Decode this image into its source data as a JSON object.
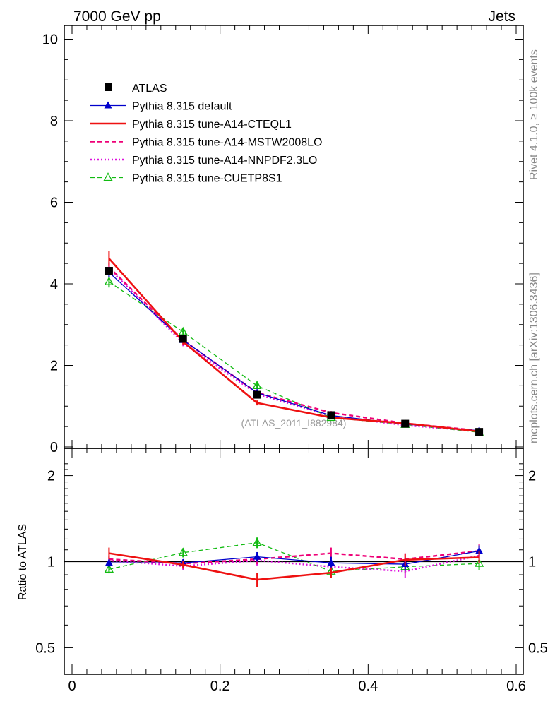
{
  "header": {
    "left": "7000 GeV pp",
    "right": "Jets"
  },
  "side": {
    "rivet": "Rivet 4.1.0, ≥ 100k events",
    "mcplots": "mcplots.cern.ch [arXiv:1306.3436]"
  },
  "analysis_label": "(ATLAS_2011_I882984)",
  "chart_data": [
    {
      "type": "line",
      "panel": "main",
      "title": "",
      "xlabel": "",
      "ylabel": "",
      "xlim": [
        -0.01,
        0.6
      ],
      "ylim": [
        0,
        10.5
      ],
      "yticks": [
        0,
        2,
        4,
        6,
        8,
        10
      ],
      "ytick_labels": [
        "0",
        "2",
        "4",
        "6",
        "8",
        "10"
      ],
      "x": [
        0.05,
        0.15,
        0.25,
        0.35,
        0.45,
        0.55
      ],
      "legend_position": "top-left",
      "series": [
        {
          "name": "ATLAS",
          "color": "#000000",
          "style": "data",
          "marker": "square",
          "values": [
            4.32,
            2.65,
            1.28,
            0.78,
            0.57,
            0.37
          ],
          "errors": [
            0.08,
            0.06,
            0.04,
            0.03,
            0.02,
            0.02
          ]
        },
        {
          "name": "Pythia 8.315 default",
          "color": "#0000cc",
          "style": "solid-thin",
          "marker": "triangle",
          "values": [
            4.28,
            2.62,
            1.33,
            0.77,
            0.56,
            0.4
          ],
          "errors": [
            0.12,
            0.08,
            0.05,
            0.04,
            0.03,
            0.02
          ]
        },
        {
          "name": "Pythia 8.315 tune-A14-CTEQL1",
          "color": "#ee1111",
          "style": "solid-thick",
          "marker": "none",
          "values": [
            4.62,
            2.58,
            1.08,
            0.72,
            0.58,
            0.38
          ],
          "errors": [
            0.18,
            0.08,
            0.06,
            0.04,
            0.03,
            0.02
          ]
        },
        {
          "name": "Pythia 8.315 tune-A14-MSTW2008LO",
          "color": "#ee0077",
          "style": "dashed",
          "marker": "none",
          "values": [
            4.41,
            2.62,
            1.33,
            0.84,
            0.58,
            0.4
          ],
          "errors": [
            0.12,
            0.08,
            0.05,
            0.04,
            0.03,
            0.02
          ]
        },
        {
          "name": "Pythia 8.315 tune-A14-NNPDF2.3LO",
          "color": "#dd11dd",
          "style": "dotted",
          "marker": "none",
          "values": [
            4.38,
            2.55,
            1.3,
            0.76,
            0.53,
            0.39
          ],
          "errors": [
            0.12,
            0.08,
            0.05,
            0.04,
            0.03,
            0.02
          ]
        },
        {
          "name": "Pythia 8.315 tune-CUETP8S1",
          "color": "#11bb11",
          "style": "dashed-thin",
          "marker": "open-triangle",
          "values": [
            4.05,
            2.82,
            1.5,
            0.72,
            0.55,
            0.36
          ],
          "errors": [
            0.14,
            0.1,
            0.06,
            0.04,
            0.03,
            0.02
          ]
        }
      ]
    },
    {
      "type": "line",
      "panel": "ratio",
      "title": "",
      "xlabel": "",
      "ylabel": "Ratio to ATLAS",
      "xlim": [
        -0.01,
        0.6
      ],
      "ylim": [
        0.4,
        2.3
      ],
      "y_scale": "log",
      "yticks": [
        0.5,
        1,
        2
      ],
      "ytick_labels": [
        "0.5",
        "1",
        "2"
      ],
      "xticks": [
        0,
        0.2,
        0.4,
        0.6
      ],
      "xtick_labels": [
        "0",
        "0.2",
        "0.4",
        "0.6"
      ],
      "x": [
        0.05,
        0.15,
        0.25,
        0.35,
        0.45,
        0.55
      ],
      "reference_line": 1,
      "series": [
        {
          "name": "Pythia 8.315 default",
          "color": "#0000cc",
          "values": [
            0.99,
            0.99,
            1.04,
            0.99,
            0.98,
            1.09
          ],
          "errors": [
            0.03,
            0.03,
            0.04,
            0.05,
            0.05,
            0.05
          ]
        },
        {
          "name": "Pythia 8.315 tune-A14-CTEQL1",
          "color": "#ee1111",
          "values": [
            1.07,
            0.975,
            0.865,
            0.915,
            1.015,
            1.035
          ],
          "errors": [
            0.05,
            0.03,
            0.05,
            0.04,
            0.05,
            0.05
          ]
        },
        {
          "name": "Pythia 8.315 tune-A14-MSTW2008LO",
          "color": "#ee0077",
          "values": [
            1.02,
            0.985,
            1.02,
            1.07,
            1.02,
            1.09
          ],
          "errors": [
            0.03,
            0.03,
            0.04,
            0.05,
            0.05,
            0.06
          ]
        },
        {
          "name": "Pythia 8.315 tune-A14-NNPDF2.3LO",
          "color": "#dd11dd",
          "values": [
            1.01,
            0.965,
            1.01,
            0.96,
            0.925,
            1.05
          ],
          "errors": [
            0.03,
            0.03,
            0.04,
            0.05,
            0.05,
            0.06
          ]
        },
        {
          "name": "Pythia 8.315 tune-CUETP8S1",
          "color": "#11bb11",
          "values": [
            0.94,
            1.075,
            1.165,
            0.925,
            0.96,
            0.985
          ],
          "errors": [
            0.03,
            0.04,
            0.05,
            0.05,
            0.05,
            0.05
          ]
        }
      ]
    }
  ]
}
